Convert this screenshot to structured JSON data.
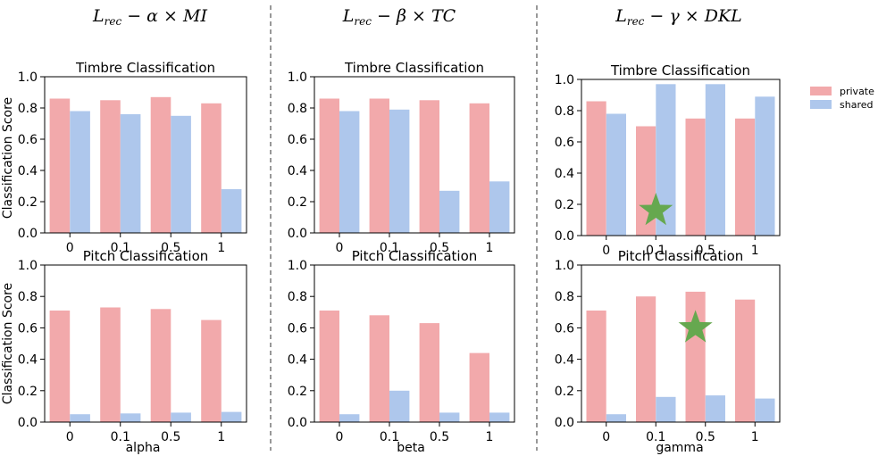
{
  "column_titles": [
    {
      "main": "L",
      "sub": "rec",
      "rest": " − α × MI"
    },
    {
      "main": "L",
      "sub": "rec",
      "rest": " − β × TC"
    },
    {
      "main": "L",
      "sub": "rec",
      "rest": " − γ × DKL"
    }
  ],
  "y_axis_label": "Classification Score",
  "x_axis_labels": [
    "alpha",
    "beta",
    "gamma"
  ],
  "legend": {
    "entries": [
      {
        "name": "private",
        "color": "#f2a9ab"
      },
      {
        "name": "shared",
        "color": "#aec7ec"
      }
    ]
  },
  "colors": {
    "private": "#f2a9ab",
    "shared": "#aec7ec",
    "star": "#66a84f"
  },
  "chart_data": [
    {
      "type": "bar",
      "title": "Timbre Classification",
      "xlabel": "",
      "ylabel": "Classification Score",
      "categories": [
        "0",
        "0.1",
        "0.5",
        "1"
      ],
      "ylim": [
        0,
        1.0
      ],
      "yticks": [
        "0.0",
        "0.2",
        "0.4",
        "0.6",
        "0.8",
        "1.0"
      ],
      "series": [
        {
          "name": "private",
          "values": [
            0.86,
            0.85,
            0.87,
            0.83
          ]
        },
        {
          "name": "shared",
          "values": [
            0.78,
            0.76,
            0.75,
            0.28
          ]
        }
      ]
    },
    {
      "type": "bar",
      "title": "Timbre Classification",
      "xlabel": "",
      "ylabel": "",
      "categories": [
        "0",
        "0.1",
        "0.5",
        "1"
      ],
      "ylim": [
        0,
        1.0
      ],
      "yticks": [
        "0.0",
        "0.2",
        "0.4",
        "0.6",
        "0.8",
        "1.0"
      ],
      "series": [
        {
          "name": "private",
          "values": [
            0.86,
            0.86,
            0.85,
            0.83
          ]
        },
        {
          "name": "shared",
          "values": [
            0.78,
            0.79,
            0.27,
            0.33
          ]
        }
      ]
    },
    {
      "type": "bar",
      "title": "Timbre Classification",
      "xlabel": "",
      "ylabel": "",
      "categories": [
        "0",
        "0.1",
        "0.5",
        "1"
      ],
      "ylim": [
        0,
        1.0
      ],
      "yticks": [
        "0.0",
        "0.2",
        "0.4",
        "0.6",
        "0.8",
        "1.0"
      ],
      "series": [
        {
          "name": "private",
          "values": [
            0.86,
            0.7,
            0.75,
            0.75
          ]
        },
        {
          "name": "shared",
          "values": [
            0.78,
            0.97,
            0.97,
            0.89
          ]
        }
      ],
      "marker": {
        "category": "0.1",
        "value": 0.16
      }
    },
    {
      "type": "bar",
      "title": "Pitch Classification",
      "xlabel": "alpha",
      "ylabel": "Classification Score",
      "categories": [
        "0",
        "0.1",
        "0.5",
        "1"
      ],
      "ylim": [
        0,
        1.0
      ],
      "yticks": [
        "0.0",
        "0.2",
        "0.4",
        "0.6",
        "0.8",
        "1.0"
      ],
      "series": [
        {
          "name": "private",
          "values": [
            0.71,
            0.73,
            0.72,
            0.65
          ]
        },
        {
          "name": "shared",
          "values": [
            0.05,
            0.055,
            0.06,
            0.065
          ]
        }
      ]
    },
    {
      "type": "bar",
      "title": "Pitch Classification",
      "xlabel": "beta",
      "ylabel": "",
      "categories": [
        "0",
        "0.1",
        "0.5",
        "1"
      ],
      "ylim": [
        0,
        1.0
      ],
      "yticks": [
        "0.0",
        "0.2",
        "0.4",
        "0.6",
        "0.8",
        "1.0"
      ],
      "series": [
        {
          "name": "private",
          "values": [
            0.71,
            0.68,
            0.63,
            0.44
          ]
        },
        {
          "name": "shared",
          "values": [
            0.05,
            0.2,
            0.06,
            0.06
          ]
        }
      ]
    },
    {
      "type": "bar",
      "title": "Pitch Classification",
      "xlabel": "gamma",
      "ylabel": "",
      "categories": [
        "0",
        "0.1",
        "0.5",
        "1"
      ],
      "ylim": [
        0,
        1.0
      ],
      "yticks": [
        "0.0",
        "0.2",
        "0.4",
        "0.6",
        "0.8",
        "1.0"
      ],
      "series": [
        {
          "name": "private",
          "values": [
            0.71,
            0.8,
            0.83,
            0.78
          ]
        },
        {
          "name": "shared",
          "values": [
            0.05,
            0.16,
            0.17,
            0.15
          ]
        }
      ],
      "marker": {
        "category": "0.5",
        "offset": -0.5,
        "value": 0.6
      }
    }
  ]
}
